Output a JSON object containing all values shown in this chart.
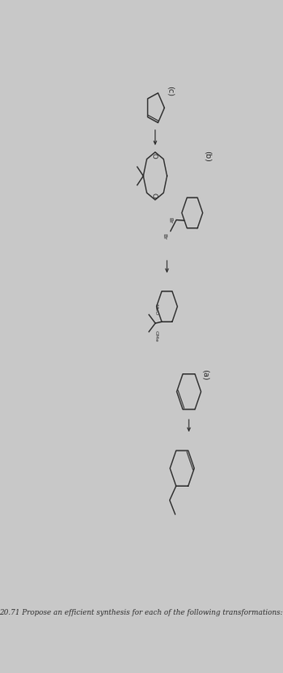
{
  "bg_color": "#c8c8c8",
  "line_color": "#2a2a2a",
  "title": "20.71 Propose an efficient synthesis for each of the following transformations:",
  "label_a": "(a)",
  "label_b": "(b)",
  "label_c": "(c)",
  "lw": 1.1
}
